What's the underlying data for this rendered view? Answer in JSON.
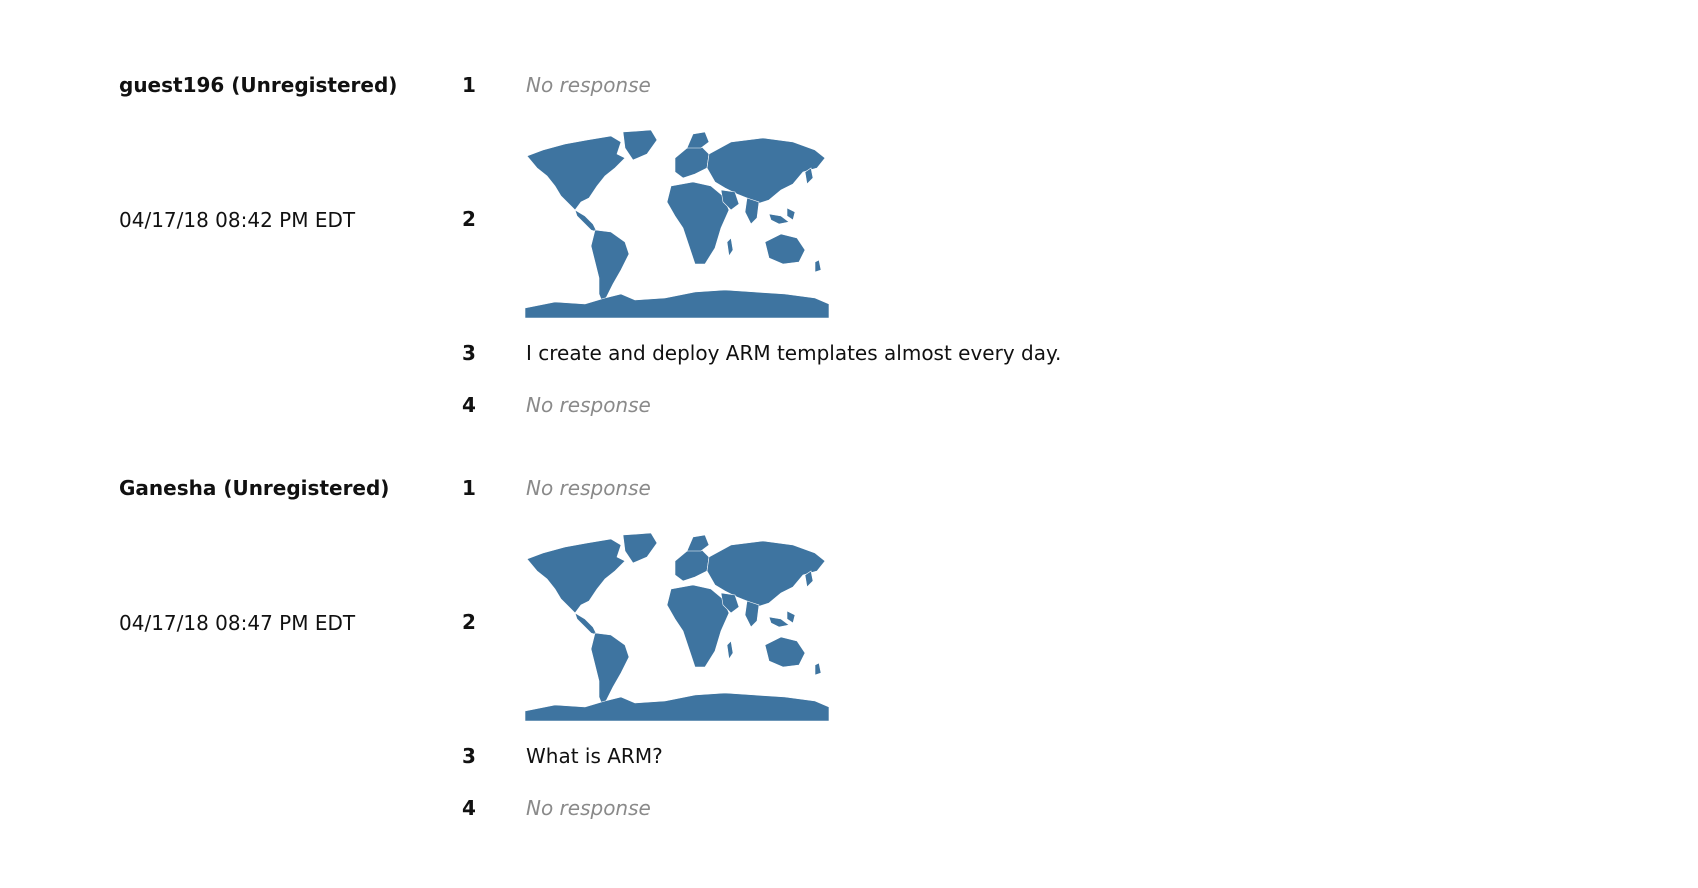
{
  "responses": [
    {
      "user": "guest196 (Unregistered)",
      "datetime": "04/17/18 08:42 PM EDT",
      "answers": {
        "q1": {
          "number": "1",
          "text": "No response"
        },
        "q2": {
          "number": "2",
          "map": "world-map"
        },
        "q3": {
          "number": "3",
          "text": "I create and deploy ARM templates almost every day."
        },
        "q4": {
          "number": "4",
          "text": "No response"
        }
      }
    },
    {
      "user": "Ganesha (Unregistered)",
      "datetime": "04/17/18 08:47 PM EDT",
      "answers": {
        "q1": {
          "number": "1",
          "text": "No response"
        },
        "q2": {
          "number": "2",
          "map": "world-map"
        },
        "q3": {
          "number": "3",
          "text": "What is ARM?"
        },
        "q4": {
          "number": "4",
          "text": "No response"
        }
      }
    }
  ],
  "colors": {
    "map_fill": "#3e74a0",
    "no_response": "#8a8a8a"
  }
}
